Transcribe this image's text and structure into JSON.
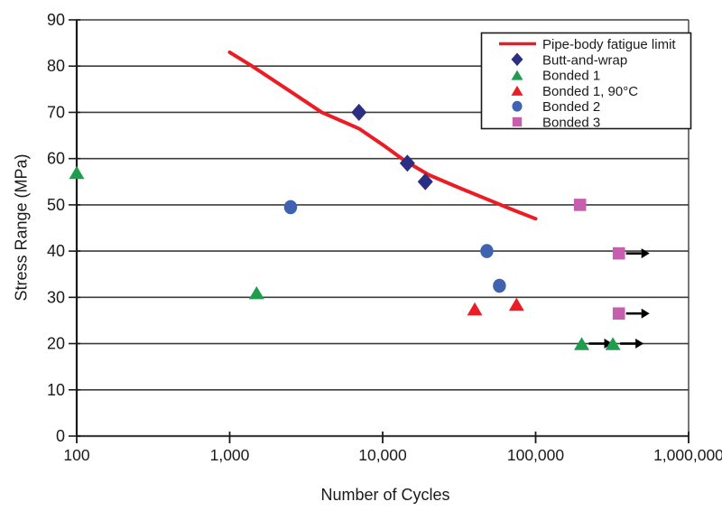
{
  "chart_data": {
    "type": "scatter",
    "title": "",
    "xlabel": "Number of Cycles",
    "ylabel": "Stress Range (MPa)",
    "x_scale": "log",
    "xlim": [
      100,
      1000000
    ],
    "ylim": [
      0,
      90
    ],
    "y_tick_interval": 10,
    "grid": "horizontal",
    "x_ticks": [
      {
        "value": 100,
        "label": "100"
      },
      {
        "value": 1000,
        "label": "1,000"
      },
      {
        "value": 10000,
        "label": "10,000"
      },
      {
        "value": 100000,
        "label": "100,000"
      },
      {
        "value": 1000000,
        "label": "1,000,000"
      }
    ],
    "fatigue_line": {
      "label": "Pipe-body fatigue limit",
      "color": "#ec1c24",
      "points": [
        [
          1000,
          83
        ],
        [
          1400,
          80
        ],
        [
          2500,
          74.5
        ],
        [
          4000,
          70
        ],
        [
          7000,
          66.5
        ],
        [
          10000,
          63
        ],
        [
          14000,
          59.5
        ],
        [
          20000,
          56.5
        ],
        [
          30000,
          54
        ],
        [
          50000,
          51
        ],
        [
          70000,
          49
        ],
        [
          100000,
          47
        ]
      ]
    },
    "series": [
      {
        "label": "Butt-and-wrap",
        "marker": "diamond",
        "color": "#2b2e83",
        "points": [
          {
            "cycles": 7000,
            "stress": 70
          },
          {
            "cycles": 14500,
            "stress": 59
          },
          {
            "cycles": 19000,
            "stress": 55
          }
        ]
      },
      {
        "label": "Bonded 1",
        "marker": "triangle",
        "color": "#1f9d4f",
        "points": [
          {
            "cycles": 100,
            "stress": 57
          },
          {
            "cycles": 1500,
            "stress": 31
          },
          {
            "cycles": 200000,
            "stress": 20,
            "runout": true
          },
          {
            "cycles": 320000,
            "stress": 20,
            "runout": true
          }
        ]
      },
      {
        "label": "Bonded 1, 90°C",
        "marker": "triangle",
        "color": "#ec1c24",
        "points": [
          {
            "cycles": 40000,
            "stress": 27.5
          },
          {
            "cycles": 75000,
            "stress": 28.5
          }
        ]
      },
      {
        "label": "Bonded 2",
        "marker": "circle",
        "color": "#3f63b1",
        "points": [
          {
            "cycles": 2500,
            "stress": 49.5
          },
          {
            "cycles": 48000,
            "stress": 40
          },
          {
            "cycles": 58000,
            "stress": 32.5
          }
        ]
      },
      {
        "label": "Bonded 3",
        "marker": "square",
        "color": "#c55fae",
        "points": [
          {
            "cycles": 195000,
            "stress": 50
          },
          {
            "cycles": 350000,
            "stress": 39.5,
            "runout": true
          },
          {
            "cycles": 350000,
            "stress": 26.5,
            "runout": true
          }
        ]
      }
    ],
    "legend": {
      "position": "top-right"
    }
  },
  "colors": {
    "background": "#ffffff",
    "grid": "#3d3d3d",
    "axis": "#1a1a1a",
    "text": "#1a1a1a",
    "arrow": "#000000",
    "legend_border": "#1a1a1a"
  }
}
